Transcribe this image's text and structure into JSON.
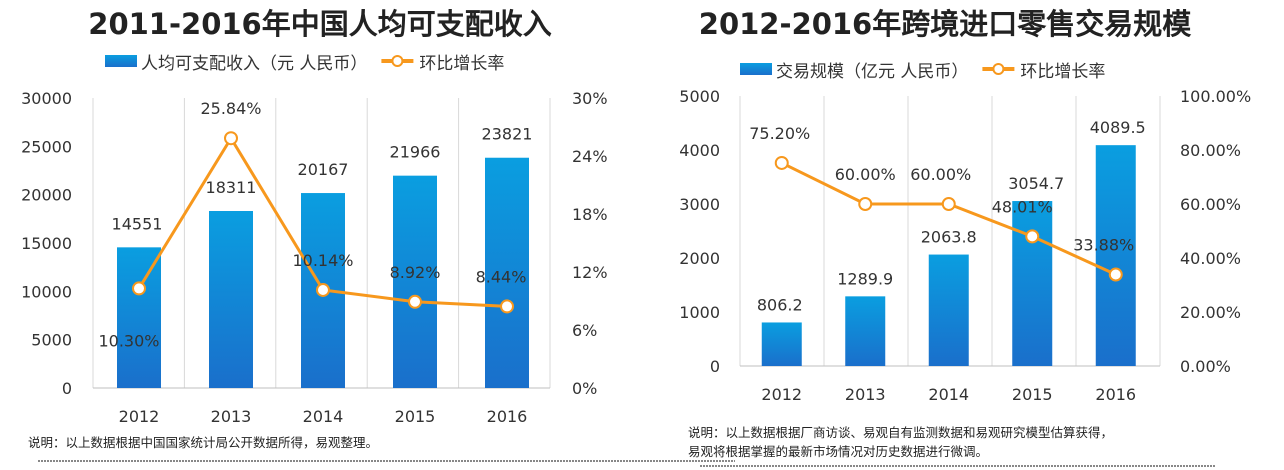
{
  "chart_data": [
    {
      "type": "bar",
      "title": "2011-2016年中国人均可支配收入",
      "categories": [
        "2012",
        "2013",
        "2014",
        "2015",
        "2016"
      ],
      "series": [
        {
          "name": "人均可支配收入（元 人民币）",
          "type": "bar",
          "axis": "left",
          "values": [
            14551,
            18311,
            20167,
            21966,
            23821
          ],
          "labels": [
            "14551",
            "18311",
            "20167",
            "21966",
            "23821"
          ]
        },
        {
          "name": "环比增长率",
          "type": "line",
          "axis": "right",
          "values": [
            10.3,
            25.84,
            10.14,
            8.92,
            8.44
          ],
          "labels": [
            "10.30%",
            "25.84%",
            "10.14%",
            "8.92%",
            "8.44%"
          ]
        }
      ],
      "ylim": [
        0,
        30000
      ],
      "yticks": [
        "0",
        "5000",
        "10000",
        "15000",
        "20000",
        "25000",
        "30000"
      ],
      "y2lim": [
        0,
        30
      ],
      "y2ticks": [
        "0%",
        "6%",
        "12%",
        "18%",
        "24%",
        "30%"
      ],
      "legend": "top",
      "grid": "vertical",
      "note": "说明：以上数据根据中国国家统计局公开数据所得，易观整理。"
    },
    {
      "type": "bar",
      "title": "2012-2016年跨境进口零售交易规模",
      "categories": [
        "2012",
        "2013",
        "2014",
        "2015",
        "2016"
      ],
      "series": [
        {
          "name": "交易规模（亿元 人民币）",
          "type": "bar",
          "axis": "left",
          "values": [
            806.2,
            1289.9,
            2063.8,
            3054.7,
            4089.5
          ],
          "labels": [
            "806.2",
            "1289.9",
            "2063.8",
            "3054.7",
            "4089.5"
          ]
        },
        {
          "name": "环比增长率",
          "type": "line",
          "axis": "right",
          "values": [
            75.2,
            60.0,
            60.0,
            48.01,
            33.88
          ],
          "labels": [
            "75.20%",
            "60.00%",
            "60.00%",
            "48.01%",
            "33.88%"
          ]
        }
      ],
      "ylim": [
        0,
        5000
      ],
      "yticks": [
        "0",
        "1000",
        "2000",
        "3000",
        "4000",
        "5000"
      ],
      "y2lim": [
        0,
        100
      ],
      "y2ticks": [
        "0.00%",
        "20.00%",
        "40.00%",
        "60.00%",
        "80.00%",
        "100.00%"
      ],
      "legend": "top",
      "grid": "vertical",
      "note": [
        "说明：以上数据根据厂商访谈、易观自有监测数据和易观研究模型估算获得，",
        "易观将根据掌握的最新市场情况对历史数据进行微调。"
      ]
    }
  ],
  "colors": {
    "bar_top": "#0a9ee0",
    "bar_bottom": "#1a6fcb",
    "line": "#f7981d"
  }
}
